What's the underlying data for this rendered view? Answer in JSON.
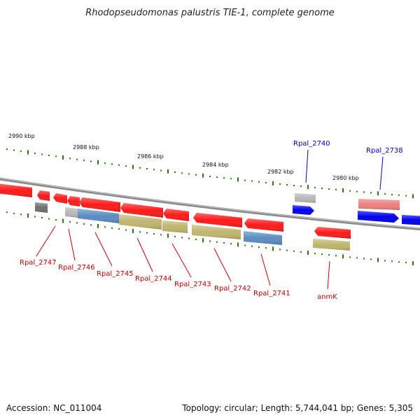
{
  "title": "Rhodopseudomonas palustris TIE-1, complete genome",
  "footer": {
    "accession": "Accession: NC_011004",
    "topology": "Topology: circular; Length: 5,744,041 bp; Genes: 5,305"
  },
  "colors": {
    "background": "#ffffff",
    "backbone": "#888888",
    "tick": "#2a7a12",
    "label_minus": "#cc0000",
    "label_plus": "#0000cc",
    "gene_red": "#ff1a1a",
    "gene_blue": "#0000ee",
    "gene_pink": "#f08080",
    "gene_gray": "#b8b8b8",
    "gene_darkgray": "#707070",
    "cog_blue": "#5b8cc0",
    "cog_olive": "#bfb56e"
  },
  "scale_labels": [
    "2990 kbp",
    "2988 kbp",
    "2986 kbp",
    "2984 kbp",
    "2982 kbp",
    "2980 kbp"
  ],
  "gene_labels_minus": [
    "Rpal_2747",
    "Rpal_2746",
    "Rpal_2745",
    "Rpal_2744",
    "Rpal_2743",
    "Rpal_2742",
    "Rpal_2741",
    "anmK"
  ],
  "gene_labels_plus": [
    "Rpal_2740",
    "Rpal_2738"
  ]
}
